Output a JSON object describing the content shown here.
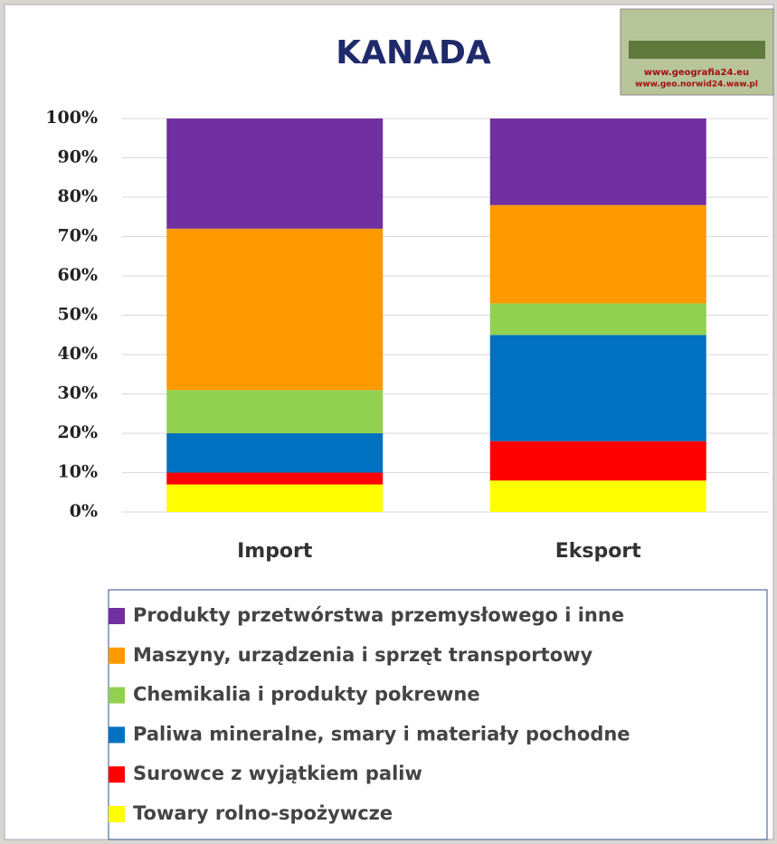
{
  "chart_data": {
    "type": "stacked_bar",
    "title": "KANADA",
    "logo": [
      "www.geografia24.eu",
      "www.geo.norwid24.waw.pl"
    ],
    "categories": [
      "Import",
      "Eksport"
    ],
    "series": [
      {
        "name": "Towary  rolno-spożywcze",
        "color": "#ffff00",
        "values": [
          7,
          8
        ]
      },
      {
        "name": "Surowce z wyjątkiem paliw",
        "color": "#ff0000",
        "values": [
          3,
          10
        ]
      },
      {
        "name": "Paliwa mineralne, smary i materiały pochodne",
        "color": "#0070c0",
        "values": [
          10,
          27
        ]
      },
      {
        "name": "Chemikalia i produkty pokrewne",
        "color": "#92d050",
        "values": [
          11,
          8
        ]
      },
      {
        "name": "Maszyny, urządzenia i sprzęt transportowy",
        "color": "#ff9900",
        "values": [
          41,
          25
        ]
      },
      {
        "name": "Produkty przetwórstwa przemysłowego i inne",
        "color": "#7030a0",
        "values": [
          28,
          22
        ]
      }
    ],
    "ylim": [
      0,
      100
    ],
    "yticks": [
      {
        "value": 0,
        "label": "0%"
      },
      {
        "value": 10,
        "label": "10%"
      },
      {
        "value": 20,
        "label": "20%"
      },
      {
        "value": 30,
        "label": "30%"
      },
      {
        "value": 40,
        "label": "40%"
      },
      {
        "value": 50,
        "label": "50%"
      },
      {
        "value": 60,
        "label": "60%"
      },
      {
        "value": 70,
        "label": "70%"
      },
      {
        "value": 80,
        "label": "80%"
      },
      {
        "value": 90,
        "label": "90%"
      },
      {
        "value": 100,
        "label": "100%"
      }
    ],
    "grid": true
  }
}
